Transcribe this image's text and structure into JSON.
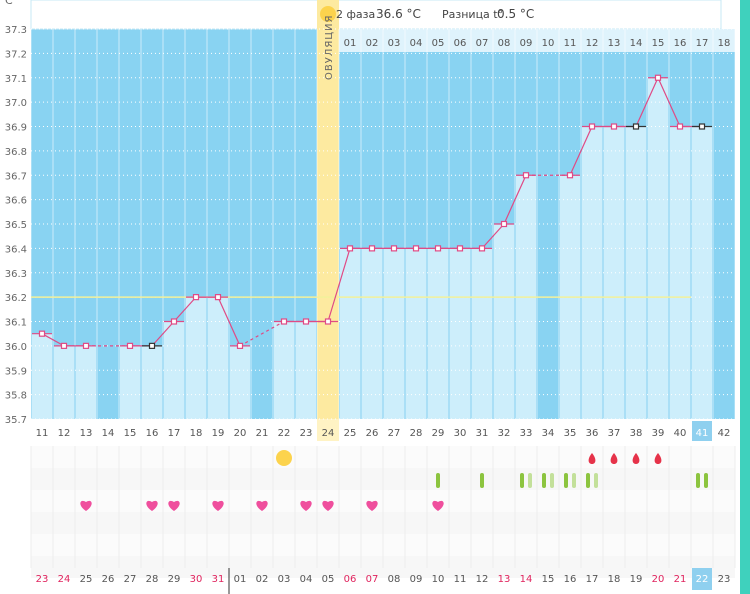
{
  "header": {
    "phase_label": "2 фаза",
    "phase_temp": "36.6 °C",
    "diff_label": "Разница t°",
    "diff_value": "0.5 °C",
    "ovulation_label": "ОВУЛЯЦИЯ",
    "unit": "C°"
  },
  "colors": {
    "sky": "#89d3f2",
    "bar": "#cdeefb",
    "line": "#e04a85",
    "ovulation_band": "#fdeaa0",
    "coverline": "#f3f19a",
    "highlight": "#8fd0ef"
  },
  "chart_data": {
    "type": "line",
    "y_ticks": [
      "35.7",
      "35.8",
      "35.9",
      "36.0",
      "36.1",
      "36.2",
      "36.3",
      "36.4",
      "36.5",
      "36.6",
      "36.7",
      "36.8",
      "36.9",
      "37.0",
      "37.1",
      "37.2",
      "37.3"
    ],
    "ylim": [
      35.7,
      37.3
    ],
    "coverline": 36.2,
    "cycle_days": [
      "11",
      "12",
      "13",
      "14",
      "15",
      "16",
      "17",
      "18",
      "19",
      "20",
      "21",
      "22",
      "23",
      "24",
      "25",
      "26",
      "27",
      "28",
      "29",
      "30",
      "31",
      "32",
      "33",
      "34",
      "35",
      "36",
      "37",
      "38",
      "39",
      "40",
      "41",
      "42"
    ],
    "phase_days": [
      "",
      "",
      "",
      "",
      "",
      "",
      "",
      "",
      "",
      "",
      "",
      "",
      "",
      "",
      "01",
      "02",
      "03",
      "04",
      "05",
      "06",
      "07",
      "08",
      "09",
      "10",
      "11",
      "12",
      "13",
      "14",
      "15",
      "16",
      "17",
      "18"
    ],
    "calendar_dates": [
      "23",
      "24",
      "25",
      "26",
      "27",
      "28",
      "29",
      "30",
      "31",
      "01",
      "02",
      "03",
      "04",
      "05",
      "06",
      "07",
      "08",
      "09",
      "10",
      "11",
      "12",
      "13",
      "14",
      "15",
      "16",
      "17",
      "18",
      "19",
      "20",
      "21",
      "22",
      "23"
    ],
    "calendar_red": [
      true,
      true,
      false,
      false,
      false,
      false,
      false,
      true,
      true,
      false,
      false,
      false,
      false,
      false,
      true,
      true,
      false,
      false,
      false,
      false,
      false,
      true,
      true,
      false,
      false,
      false,
      false,
      false,
      true,
      true,
      false,
      false
    ],
    "temperatures": [
      36.05,
      36.0,
      36.0,
      null,
      36.0,
      36.0,
      36.1,
      36.2,
      36.2,
      36.0,
      null,
      36.1,
      36.1,
      36.1,
      36.4,
      36.4,
      36.4,
      36.4,
      36.4,
      36.4,
      36.4,
      36.5,
      36.7,
      null,
      36.7,
      36.9,
      36.9,
      36.9,
      37.1,
      36.9,
      36.9,
      null
    ],
    "excluded": [
      false,
      false,
      false,
      false,
      false,
      true,
      false,
      false,
      false,
      false,
      false,
      false,
      false,
      false,
      false,
      false,
      false,
      false,
      false,
      false,
      false,
      false,
      false,
      false,
      false,
      false,
      false,
      true,
      false,
      false,
      true,
      false
    ],
    "ovulation_index": 13,
    "today_index": 30,
    "sun_index": 11,
    "drops": [
      25,
      26,
      27,
      28
    ],
    "marks": [
      {
        "i": 18,
        "bars": [
          {
            "c": "#8cc43f"
          }
        ]
      },
      {
        "i": 20,
        "bars": [
          {
            "c": "#8cc43f"
          }
        ]
      },
      {
        "i": 22,
        "bars": [
          {
            "c": "#8cc43f"
          },
          {
            "c": "#c3e09a"
          }
        ]
      },
      {
        "i": 23,
        "bars": [
          {
            "c": "#8cc43f"
          },
          {
            "c": "#c3e09a"
          }
        ]
      },
      {
        "i": 24,
        "bars": [
          {
            "c": "#8cc43f"
          },
          {
            "c": "#c3e09a"
          }
        ]
      },
      {
        "i": 25,
        "bars": [
          {
            "c": "#8cc43f"
          },
          {
            "c": "#c3e09a"
          }
        ]
      },
      {
        "i": 30,
        "bars": [
          {
            "c": "#8cc43f"
          },
          {
            "c": "#8cc43f"
          }
        ]
      }
    ],
    "hearts": [
      2,
      5,
      6,
      8,
      10,
      12,
      13,
      15,
      18
    ]
  }
}
